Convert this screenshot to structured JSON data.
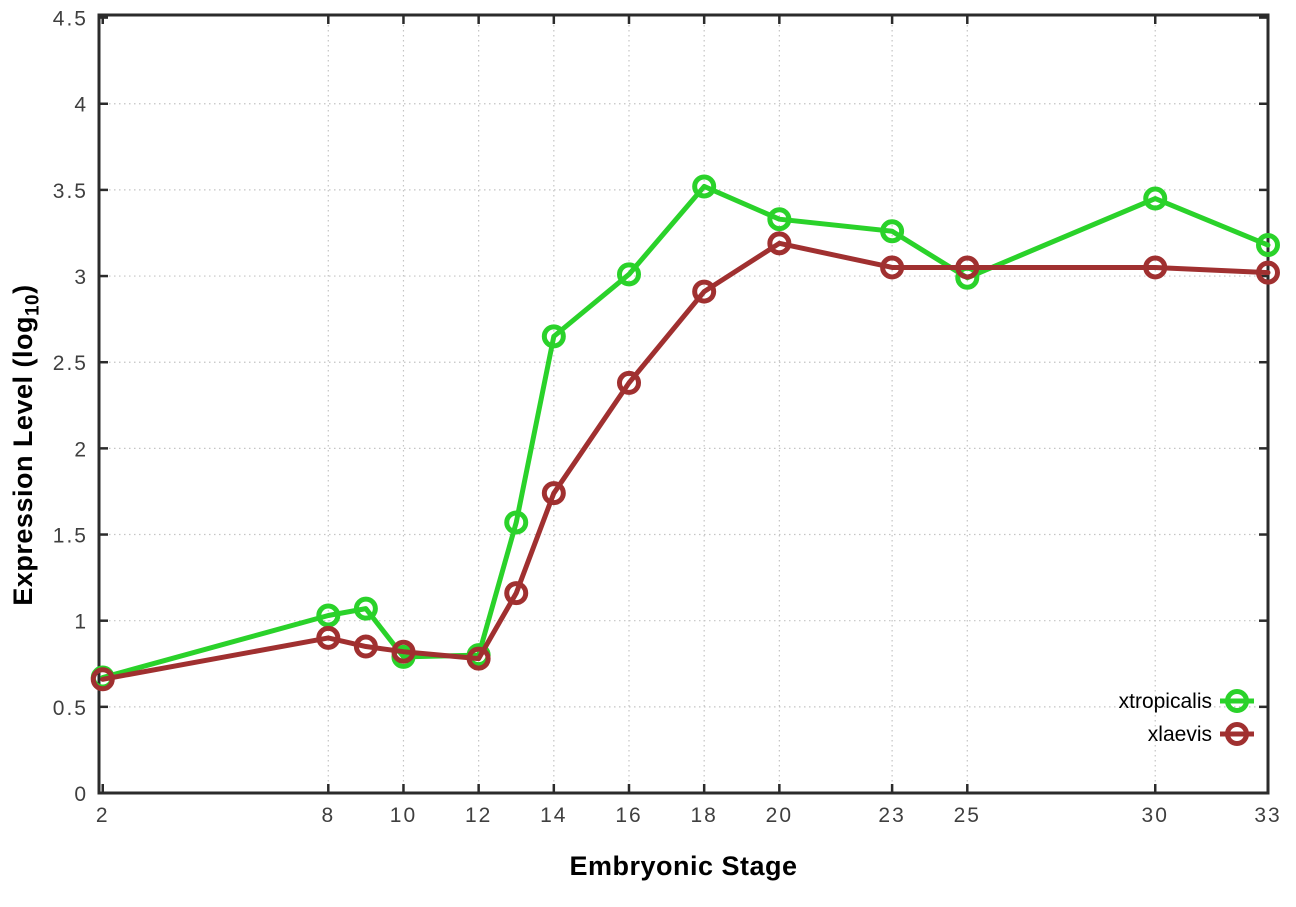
{
  "chart_data": {
    "type": "line",
    "title": "",
    "xlabel": "Embryonic Stage",
    "ylabel": "Expression Level (log10)",
    "ylabel_parts": {
      "main": "Expression Level (log",
      "sub": "10",
      "end": ")"
    },
    "x": [
      2,
      8,
      9,
      10,
      12,
      13,
      14,
      16,
      18,
      20,
      23,
      25,
      30,
      33
    ],
    "series": [
      {
        "name": "xtropicalis",
        "color": "#2ad22a",
        "values": [
          0.67,
          1.03,
          1.07,
          0.79,
          0.8,
          1.57,
          2.65,
          3.01,
          3.52,
          3.33,
          3.26,
          2.99,
          3.45,
          3.18
        ]
      },
      {
        "name": "xlaevis",
        "color": "#a03030",
        "values": [
          0.66,
          0.9,
          0.85,
          0.82,
          0.78,
          1.16,
          1.74,
          2.38,
          2.91,
          3.19,
          3.05,
          3.05,
          3.05,
          3.02
        ]
      }
    ],
    "x_ticks": [
      2,
      8,
      10,
      12,
      14,
      16,
      18,
      20,
      23,
      25,
      30,
      33
    ],
    "y_ticks": [
      0,
      0.5,
      1,
      1.5,
      2,
      2.5,
      3,
      3.5,
      4,
      4.5
    ],
    "xlim": [
      1.9,
      33
    ],
    "ylim": [
      0,
      4.515
    ],
    "grid": true,
    "marker": "open-circle",
    "legend_position": "bottom-right",
    "axis_color": "#2b2b2b",
    "grid_color": "#c4c4c4",
    "tick_label_color": "#3f3f3f"
  }
}
